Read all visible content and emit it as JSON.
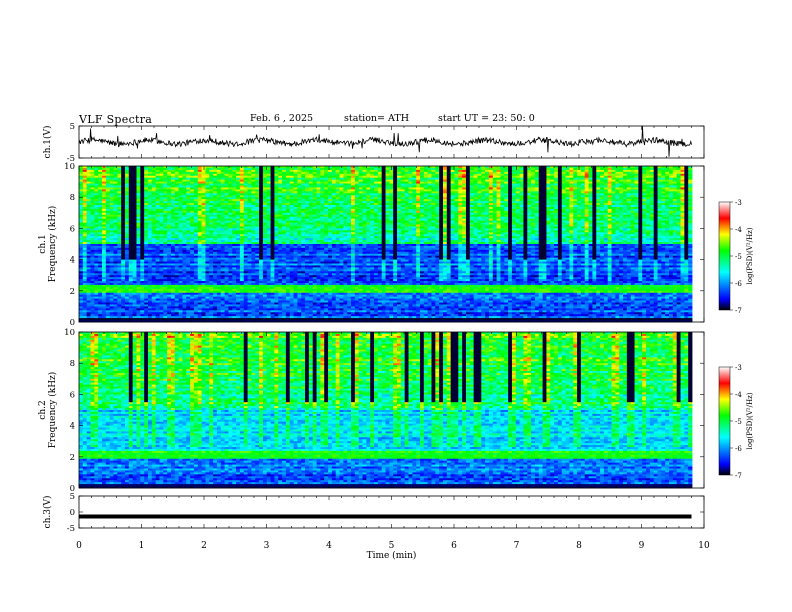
{
  "header": {
    "title": "VLF  Spectra",
    "date": "Feb. 6  , 2025",
    "station": "station= ATH",
    "start": "start  UT  =    23: 50: 0"
  },
  "colors": {
    "colormap": [
      "#000000",
      "#0000ff",
      "#00ffff",
      "#00ff00",
      "#ffff00",
      "#ff0000",
      "#ffffff"
    ],
    "waveform": "#000000"
  },
  "chart_data": [
    {
      "type": "line",
      "panel": "ch1-waveform",
      "ylabel": "ch.1(V)",
      "ylim": [
        -5,
        5
      ],
      "yticks": [
        "5",
        "-5"
      ],
      "description_series": "noisy waveform around 0 V with spikes"
    },
    {
      "type": "heatmap",
      "panel": "ch1-spectrogram",
      "ylabel": "ch.1\nFrequency  (kHz)",
      "ylim": [
        0,
        10
      ],
      "yticks": [
        "0",
        "2",
        "4",
        "6",
        "8",
        "10"
      ],
      "xlim": [
        0,
        10
      ],
      "colorbar": {
        "label": "log(PSD)(V²/Hz)",
        "range": [
          -7,
          -3
        ],
        "ticks": [
          "-3",
          "-4",
          "-5",
          "-6",
          "-7"
        ]
      }
    },
    {
      "type": "heatmap",
      "panel": "ch2-spectrogram",
      "ylabel": "ch.2\nFrequency  (kHz)",
      "ylim": [
        0,
        10
      ],
      "yticks": [
        "0",
        "2",
        "4",
        "6",
        "8",
        "10"
      ],
      "xlim": [
        0,
        10
      ],
      "colorbar": {
        "label": "log(PSD)(V²/Hz)",
        "range": [
          -7,
          -3
        ],
        "ticks": [
          "-3",
          "-4",
          "-5",
          "-6",
          "-7"
        ]
      }
    },
    {
      "type": "line",
      "panel": "ch3-waveform",
      "ylabel": "ch.3(V)",
      "ylim": [
        -5,
        5
      ],
      "yticks": [
        "5",
        "0",
        "-5"
      ],
      "y": -1.4
    }
  ],
  "xaxis": {
    "label": "Time  (min)",
    "xlim": [
      0,
      10
    ],
    "ticks": [
      "0",
      "1",
      "2",
      "3",
      "4",
      "5",
      "6",
      "7",
      "8",
      "9",
      "10"
    ],
    "data_end": 9.8
  }
}
